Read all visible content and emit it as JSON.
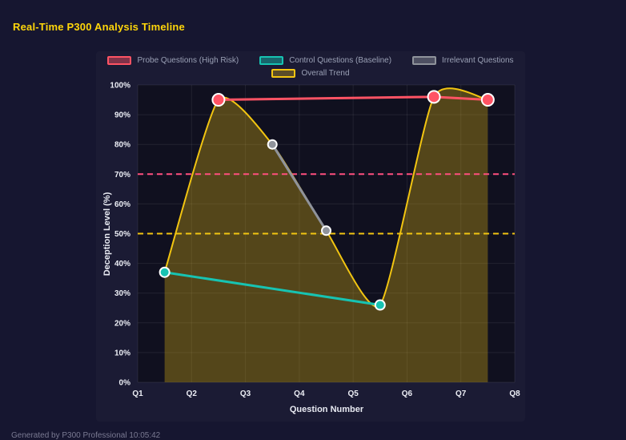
{
  "page": {
    "title": "Real-Time P300 Analysis Timeline",
    "footer": "Generated by P300 Professional    10:05:42"
  },
  "legend": {
    "items": [
      {
        "label": "Probe Questions (High Risk)",
        "color": "#ff5364",
        "fill": "rgba(255,83,100,0.45)"
      },
      {
        "label": "Control Questions (Baseline)",
        "color": "#17c3b2",
        "fill": "rgba(23,195,178,0.45)"
      },
      {
        "label": "Irrelevant Questions",
        "color": "#8f939b",
        "fill": "rgba(143,147,155,0.45)"
      },
      {
        "label": "Overall Trend",
        "color": "#f2c511",
        "fill": "rgba(242,197,17,0.30)"
      }
    ]
  },
  "chart_data": {
    "type": "line",
    "title": "Real-Time P300 Analysis Timeline",
    "xlabel": "Question Number",
    "ylabel": "Deception Level (%)",
    "xlim": [
      1,
      8
    ],
    "ylim": [
      0,
      100
    ],
    "x_ticks": [
      "Q1",
      "Q2",
      "Q3",
      "Q4",
      "Q5",
      "Q6",
      "Q7",
      "Q8"
    ],
    "y_ticks": [
      "0%",
      "10%",
      "20%",
      "30%",
      "40%",
      "50%",
      "60%",
      "70%",
      "80%",
      "90%",
      "100%"
    ],
    "grid": true,
    "legend_position": "top",
    "series": [
      {
        "name": "Probe Questions (High Risk)",
        "color": "#ff5364",
        "marker_radius": 7.5,
        "line_width": 3,
        "smooth": false,
        "points": [
          {
            "x": 2.5,
            "y": 95
          },
          {
            "x": 6.5,
            "y": 96
          },
          {
            "x": 7.5,
            "y": 95
          }
        ]
      },
      {
        "name": "Control Questions (Baseline)",
        "color": "#17c3b2",
        "marker_radius": 6,
        "line_width": 3,
        "smooth": false,
        "points": [
          {
            "x": 1.5,
            "y": 37
          },
          {
            "x": 5.5,
            "y": 26
          }
        ]
      },
      {
        "name": "Irrelevant Questions",
        "color": "#8f939b",
        "marker_radius": 5.5,
        "line_width": 3,
        "smooth": false,
        "points": [
          {
            "x": 3.5,
            "y": 80
          },
          {
            "x": 4.5,
            "y": 51
          }
        ]
      },
      {
        "name": "Overall Trend",
        "color": "#f2c511",
        "marker_radius": 0,
        "line_width": 2,
        "smooth": true,
        "area_fill": "rgba(242,197,17,0.30)",
        "points": [
          {
            "x": 1.5,
            "y": 37
          },
          {
            "x": 2.5,
            "y": 95
          },
          {
            "x": 3.5,
            "y": 80
          },
          {
            "x": 4.5,
            "y": 51
          },
          {
            "x": 5.5,
            "y": 26
          },
          {
            "x": 6.5,
            "y": 96
          },
          {
            "x": 7.5,
            "y": 95
          }
        ]
      }
    ],
    "threshold_lines": [
      {
        "y": 70,
        "color": "#ff4f7e",
        "style": "dashed"
      },
      {
        "y": 50,
        "color": "#f2c511",
        "style": "dashed"
      }
    ]
  }
}
